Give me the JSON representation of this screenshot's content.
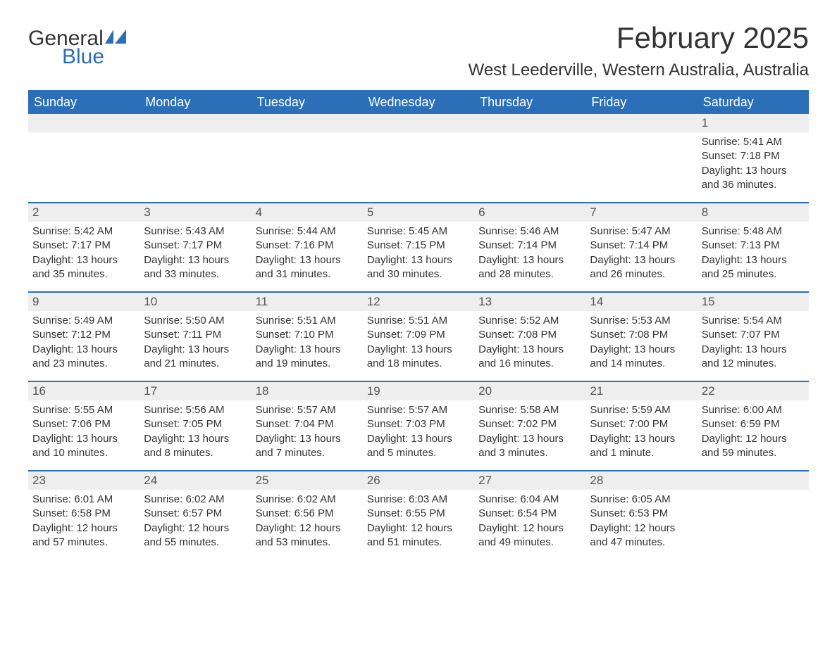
{
  "brand": {
    "word1": "General",
    "word2": "Blue",
    "text_color": "#333333",
    "accent_color": "#2a6fb7"
  },
  "title": {
    "month_year": "February 2025",
    "location": "West Leederville, Western Australia, Australia"
  },
  "style": {
    "header_bg": "#2a6fb7",
    "header_text": "#ffffff",
    "row_border_color": "#2a6fb7",
    "daynum_bg": "#eeeeee",
    "body_text": "#333333",
    "title_fontsize": 42,
    "location_fontsize": 24,
    "dayheader_fontsize": 18,
    "body_fontsize": 15
  },
  "day_headers": [
    "Sunday",
    "Monday",
    "Tuesday",
    "Wednesday",
    "Thursday",
    "Friday",
    "Saturday"
  ],
  "weeks": [
    [
      {
        "n": "",
        "sunrise": "",
        "sunset": "",
        "daylight": ""
      },
      {
        "n": "",
        "sunrise": "",
        "sunset": "",
        "daylight": ""
      },
      {
        "n": "",
        "sunrise": "",
        "sunset": "",
        "daylight": ""
      },
      {
        "n": "",
        "sunrise": "",
        "sunset": "",
        "daylight": ""
      },
      {
        "n": "",
        "sunrise": "",
        "sunset": "",
        "daylight": ""
      },
      {
        "n": "",
        "sunrise": "",
        "sunset": "",
        "daylight": ""
      },
      {
        "n": "1",
        "sunrise": "Sunrise: 5:41 AM",
        "sunset": "Sunset: 7:18 PM",
        "daylight": "Daylight: 13 hours and 36 minutes."
      }
    ],
    [
      {
        "n": "2",
        "sunrise": "Sunrise: 5:42 AM",
        "sunset": "Sunset: 7:17 PM",
        "daylight": "Daylight: 13 hours and 35 minutes."
      },
      {
        "n": "3",
        "sunrise": "Sunrise: 5:43 AM",
        "sunset": "Sunset: 7:17 PM",
        "daylight": "Daylight: 13 hours and 33 minutes."
      },
      {
        "n": "4",
        "sunrise": "Sunrise: 5:44 AM",
        "sunset": "Sunset: 7:16 PM",
        "daylight": "Daylight: 13 hours and 31 minutes."
      },
      {
        "n": "5",
        "sunrise": "Sunrise: 5:45 AM",
        "sunset": "Sunset: 7:15 PM",
        "daylight": "Daylight: 13 hours and 30 minutes."
      },
      {
        "n": "6",
        "sunrise": "Sunrise: 5:46 AM",
        "sunset": "Sunset: 7:14 PM",
        "daylight": "Daylight: 13 hours and 28 minutes."
      },
      {
        "n": "7",
        "sunrise": "Sunrise: 5:47 AM",
        "sunset": "Sunset: 7:14 PM",
        "daylight": "Daylight: 13 hours and 26 minutes."
      },
      {
        "n": "8",
        "sunrise": "Sunrise: 5:48 AM",
        "sunset": "Sunset: 7:13 PM",
        "daylight": "Daylight: 13 hours and 25 minutes."
      }
    ],
    [
      {
        "n": "9",
        "sunrise": "Sunrise: 5:49 AM",
        "sunset": "Sunset: 7:12 PM",
        "daylight": "Daylight: 13 hours and 23 minutes."
      },
      {
        "n": "10",
        "sunrise": "Sunrise: 5:50 AM",
        "sunset": "Sunset: 7:11 PM",
        "daylight": "Daylight: 13 hours and 21 minutes."
      },
      {
        "n": "11",
        "sunrise": "Sunrise: 5:51 AM",
        "sunset": "Sunset: 7:10 PM",
        "daylight": "Daylight: 13 hours and 19 minutes."
      },
      {
        "n": "12",
        "sunrise": "Sunrise: 5:51 AM",
        "sunset": "Sunset: 7:09 PM",
        "daylight": "Daylight: 13 hours and 18 minutes."
      },
      {
        "n": "13",
        "sunrise": "Sunrise: 5:52 AM",
        "sunset": "Sunset: 7:08 PM",
        "daylight": "Daylight: 13 hours and 16 minutes."
      },
      {
        "n": "14",
        "sunrise": "Sunrise: 5:53 AM",
        "sunset": "Sunset: 7:08 PM",
        "daylight": "Daylight: 13 hours and 14 minutes."
      },
      {
        "n": "15",
        "sunrise": "Sunrise: 5:54 AM",
        "sunset": "Sunset: 7:07 PM",
        "daylight": "Daylight: 13 hours and 12 minutes."
      }
    ],
    [
      {
        "n": "16",
        "sunrise": "Sunrise: 5:55 AM",
        "sunset": "Sunset: 7:06 PM",
        "daylight": "Daylight: 13 hours and 10 minutes."
      },
      {
        "n": "17",
        "sunrise": "Sunrise: 5:56 AM",
        "sunset": "Sunset: 7:05 PM",
        "daylight": "Daylight: 13 hours and 8 minutes."
      },
      {
        "n": "18",
        "sunrise": "Sunrise: 5:57 AM",
        "sunset": "Sunset: 7:04 PM",
        "daylight": "Daylight: 13 hours and 7 minutes."
      },
      {
        "n": "19",
        "sunrise": "Sunrise: 5:57 AM",
        "sunset": "Sunset: 7:03 PM",
        "daylight": "Daylight: 13 hours and 5 minutes."
      },
      {
        "n": "20",
        "sunrise": "Sunrise: 5:58 AM",
        "sunset": "Sunset: 7:02 PM",
        "daylight": "Daylight: 13 hours and 3 minutes."
      },
      {
        "n": "21",
        "sunrise": "Sunrise: 5:59 AM",
        "sunset": "Sunset: 7:00 PM",
        "daylight": "Daylight: 13 hours and 1 minute."
      },
      {
        "n": "22",
        "sunrise": "Sunrise: 6:00 AM",
        "sunset": "Sunset: 6:59 PM",
        "daylight": "Daylight: 12 hours and 59 minutes."
      }
    ],
    [
      {
        "n": "23",
        "sunrise": "Sunrise: 6:01 AM",
        "sunset": "Sunset: 6:58 PM",
        "daylight": "Daylight: 12 hours and 57 minutes."
      },
      {
        "n": "24",
        "sunrise": "Sunrise: 6:02 AM",
        "sunset": "Sunset: 6:57 PM",
        "daylight": "Daylight: 12 hours and 55 minutes."
      },
      {
        "n": "25",
        "sunrise": "Sunrise: 6:02 AM",
        "sunset": "Sunset: 6:56 PM",
        "daylight": "Daylight: 12 hours and 53 minutes."
      },
      {
        "n": "26",
        "sunrise": "Sunrise: 6:03 AM",
        "sunset": "Sunset: 6:55 PM",
        "daylight": "Daylight: 12 hours and 51 minutes."
      },
      {
        "n": "27",
        "sunrise": "Sunrise: 6:04 AM",
        "sunset": "Sunset: 6:54 PM",
        "daylight": "Daylight: 12 hours and 49 minutes."
      },
      {
        "n": "28",
        "sunrise": "Sunrise: 6:05 AM",
        "sunset": "Sunset: 6:53 PM",
        "daylight": "Daylight: 12 hours and 47 minutes."
      },
      {
        "n": "",
        "sunrise": "",
        "sunset": "",
        "daylight": ""
      }
    ]
  ]
}
